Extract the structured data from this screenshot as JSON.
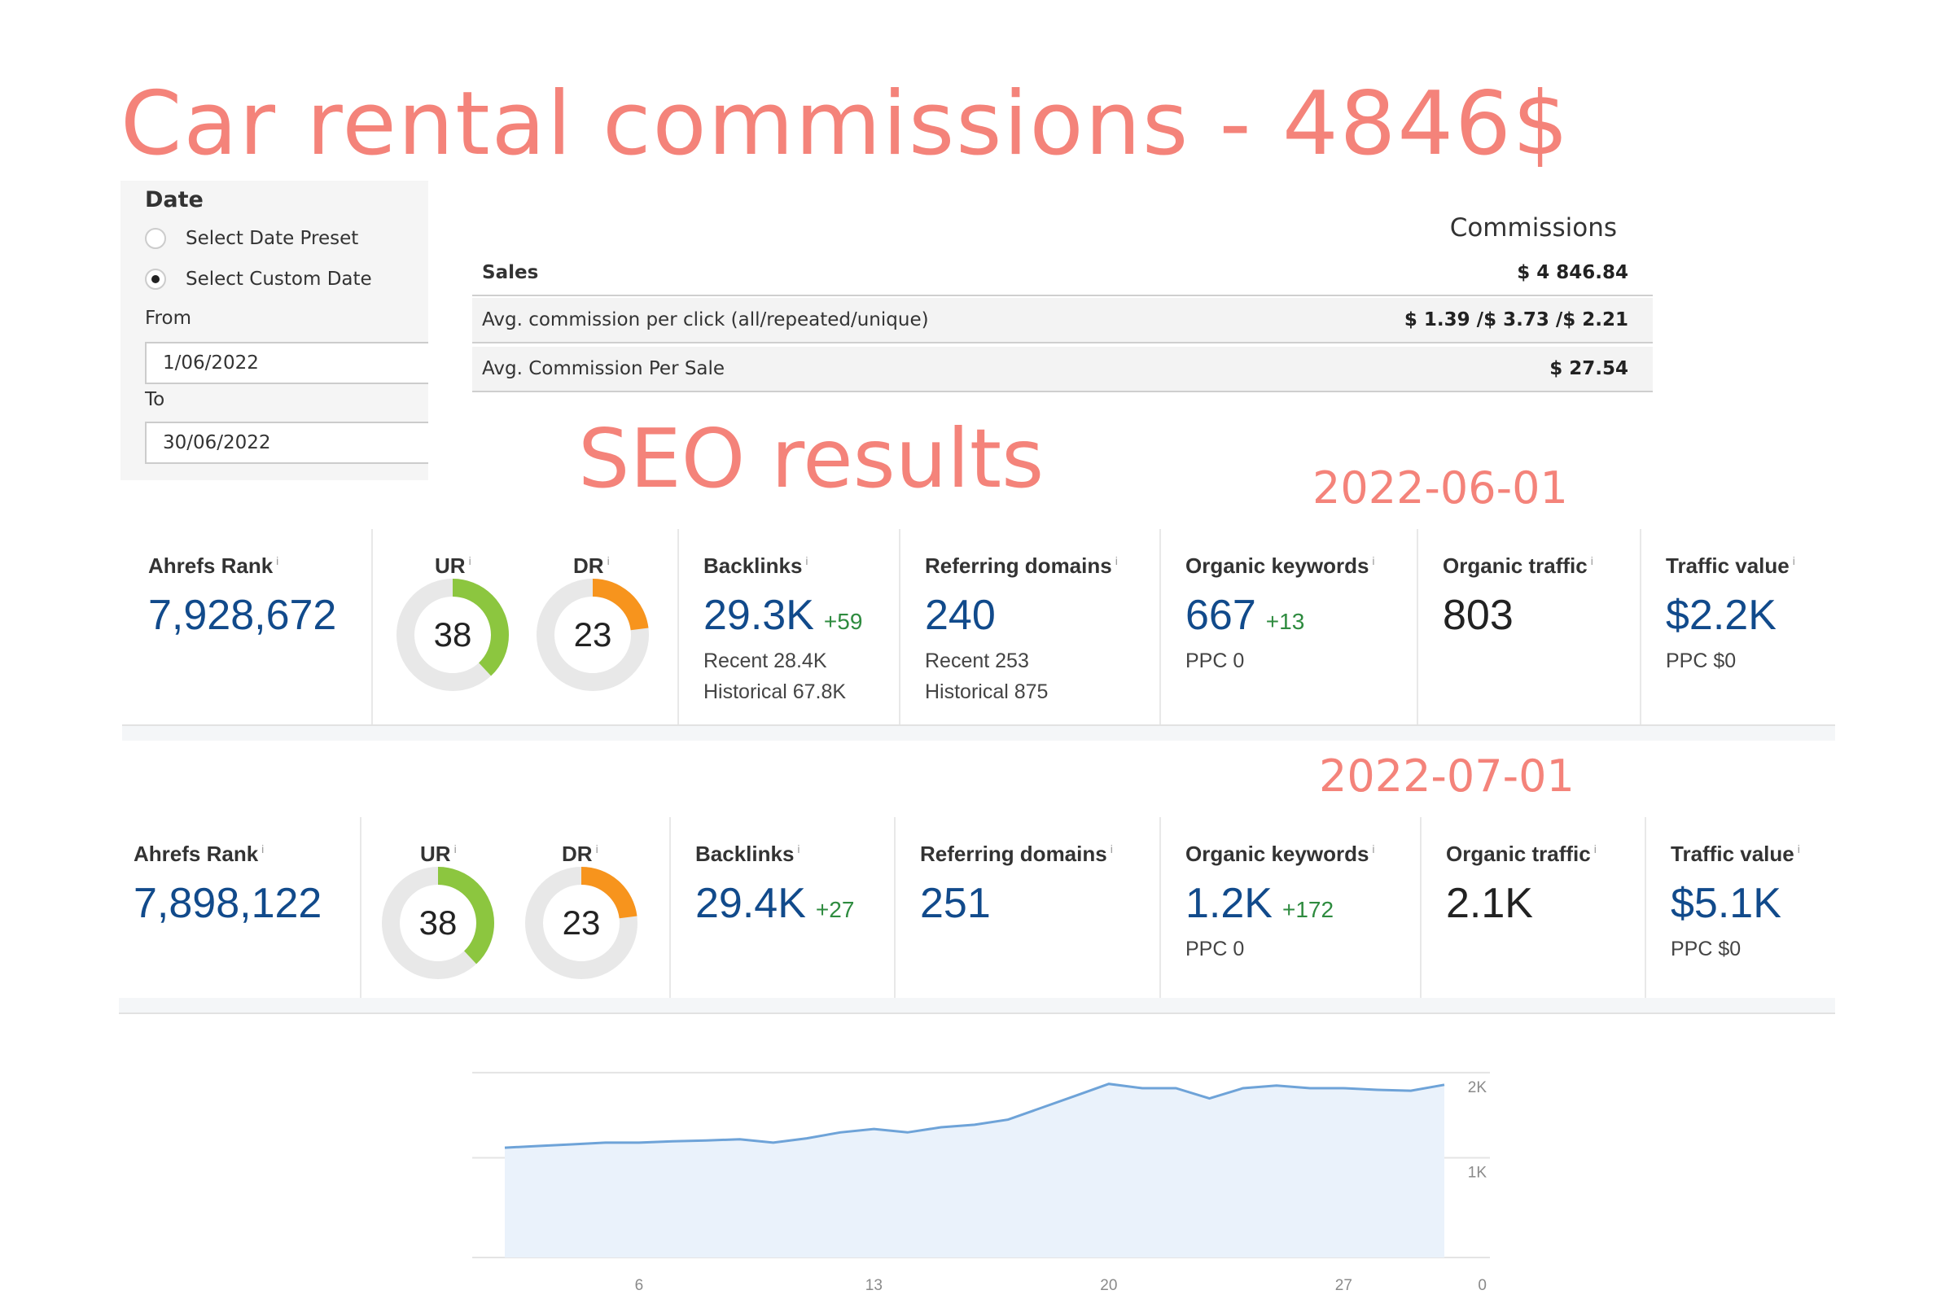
{
  "headings": {
    "main_title": "Car rental commissions - 4846$",
    "seo_title": "SEO results",
    "snapshot1_date": "2022-06-01",
    "snapshot2_date": "2022-07-01"
  },
  "date_filter": {
    "heading": "Date",
    "preset_label": "Select Date Preset",
    "custom_label": "Select Custom Date",
    "selected": "custom",
    "from_label": "From",
    "from_value": "1/06/2022",
    "to_label": "To",
    "to_value": "30/06/2022"
  },
  "commissions": {
    "column_header": "Commissions",
    "rows": [
      {
        "label": "Sales",
        "value": "$ 4 846.84"
      },
      {
        "label": "Avg. commission per click (all/repeated/unique)",
        "value": "$ 1.39 /$ 3.73 /$ 2.21"
      },
      {
        "label": "Avg. Commission Per Sale",
        "value": "$ 27.54"
      }
    ]
  },
  "snapshots": [
    {
      "ahrefs_rank_label": "Ahrefs Rank",
      "ahrefs_rank": "7,928,672",
      "ur_label": "UR",
      "ur": "38",
      "ur_fraction": 0.38,
      "dr_label": "DR",
      "dr": "23",
      "dr_fraction": 0.23,
      "backlinks_label": "Backlinks",
      "backlinks": "29.3K",
      "backlinks_delta": "+59",
      "backlinks_recent": "Recent 28.4K",
      "backlinks_historical": "Historical 67.8K",
      "refdomains_label": "Referring domains",
      "refdomains": "240",
      "refdomains_recent": "Recent 253",
      "refdomains_historical": "Historical 875",
      "keywords_label": "Organic keywords",
      "keywords": "667",
      "keywords_delta": "+13",
      "keywords_ppc": "PPC 0",
      "traffic_label": "Organic traffic",
      "traffic": "803",
      "value_label": "Traffic value",
      "value": "$2.2K",
      "value_ppc": "PPC $0"
    },
    {
      "ahrefs_rank_label": "Ahrefs Rank",
      "ahrefs_rank": "7,898,122",
      "ur_label": "UR",
      "ur": "38",
      "ur_fraction": 0.38,
      "dr_label": "DR",
      "dr": "23",
      "dr_fraction": 0.23,
      "backlinks_label": "Backlinks",
      "backlinks": "29.4K",
      "backlinks_delta": "+27",
      "refdomains_label": "Referring domains",
      "refdomains": "251",
      "keywords_label": "Organic keywords",
      "keywords": "1.2K",
      "keywords_delta": "+172",
      "keywords_ppc": "PPC 0",
      "traffic_label": "Organic traffic",
      "traffic": "2.1K",
      "value_label": "Traffic value",
      "value": "$5.1K",
      "value_ppc": "PPC $0"
    }
  ],
  "colors": {
    "heading": "#f4837a",
    "metric_blue": "#114a8b",
    "delta_green": "#2e8b3f",
    "ur_green": "#8cc63f",
    "dr_orange": "#f7941d",
    "gauge_track": "#e8e8e8",
    "line": "#6ea3d8",
    "area": "#eaf2fb"
  },
  "chart_data": {
    "type": "area",
    "x": [
      2,
      3,
      4,
      5,
      6,
      7,
      8,
      9,
      10,
      11,
      12,
      13,
      14,
      15,
      16,
      17,
      18,
      19,
      20,
      21,
      22,
      23,
      24,
      25,
      26,
      27,
      28,
      29,
      30
    ],
    "series": [
      {
        "values": [
          1290,
          1310,
          1330,
          1350,
          1350,
          1365,
          1375,
          1390,
          1350,
          1400,
          1470,
          1510,
          1470,
          1530,
          1560,
          1620,
          1760,
          1900,
          2040,
          1990,
          1990,
          1870,
          1990,
          2020,
          1990,
          1990,
          1970,
          1960,
          2030
        ]
      }
    ],
    "x_ticks": [
      "6",
      "13",
      "20",
      "27",
      "0"
    ],
    "y_ticks": [
      "1K",
      "2K"
    ],
    "ylim": [
      0,
      2200
    ],
    "grid": true
  }
}
